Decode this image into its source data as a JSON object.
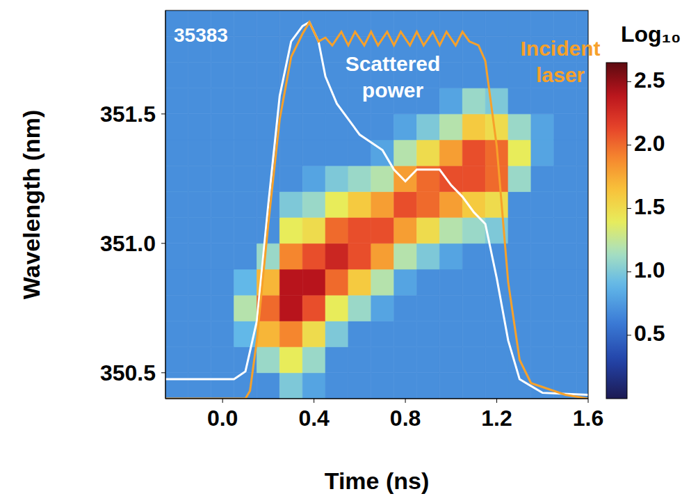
{
  "chart_data": {
    "type": "heatmap",
    "annotations": [
      "35383"
    ],
    "x_label": "Time (ns)",
    "y_label": "Wavelength (nm)",
    "xlim": [
      -0.25,
      1.6
    ],
    "xticks": [
      {
        "value": 0,
        "label": "0.0"
      },
      0.4,
      0.8,
      1.2,
      1.6
    ],
    "ylim": [
      350.4,
      351.9
    ],
    "yticks": [
      350.5,
      {
        "value": 351,
        "label": "351.0"
      },
      351.5
    ],
    "y2lim": [
      0,
      1
    ],
    "y2ticks": [],
    "x_bins": [
      -0.25,
      -0.15,
      -0.05,
      0.05,
      0.15,
      0.25,
      0.35,
      0.45,
      0.55,
      0.65,
      0.75,
      0.85,
      0.95,
      1.05,
      1.15,
      1.25,
      1.35,
      1.45,
      1.55,
      1.6
    ],
    "y_bins": [
      350.4,
      350.5,
      350.6,
      350.7,
      350.8,
      350.9,
      351.0,
      351.1,
      351.2,
      351.3,
      351.4,
      351.5,
      351.6,
      351.7,
      351.8,
      351.9
    ],
    "cells": [
      [
        0.7,
        0.7,
        0.7,
        0.7,
        0.7,
        1.0,
        0.8,
        0.7,
        0.7,
        0.7,
        0.7,
        0.7,
        0.7,
        0.7,
        0.7,
        0.7,
        0.7,
        0.7,
        0.7
      ],
      [
        0.7,
        0.7,
        0.7,
        0.7,
        1.1,
        1.4,
        1.1,
        0.7,
        0.7,
        0.7,
        0.7,
        0.7,
        0.7,
        0.7,
        0.7,
        0.7,
        0.7,
        0.7,
        0.7
      ],
      [
        0.7,
        0.7,
        0.7,
        0.9,
        1.7,
        1.9,
        1.5,
        1.0,
        0.7,
        0.7,
        0.7,
        0.7,
        0.7,
        0.7,
        0.7,
        0.7,
        0.7,
        0.7,
        0.7
      ],
      [
        0.7,
        0.7,
        0.7,
        1.2,
        2.0,
        2.4,
        2.1,
        1.4,
        1.1,
        0.8,
        0.7,
        0.7,
        0.7,
        0.7,
        0.7,
        0.7,
        0.7,
        0.7,
        0.7
      ],
      [
        0.7,
        0.7,
        0.7,
        0.9,
        1.7,
        2.4,
        2.4,
        2.0,
        1.6,
        1.2,
        0.8,
        0.7,
        0.7,
        0.7,
        0.7,
        0.7,
        0.7,
        0.7,
        0.7
      ],
      [
        0.7,
        0.7,
        0.7,
        0.7,
        1.1,
        1.9,
        2.1,
        2.3,
        2.1,
        1.8,
        1.2,
        1.0,
        0.8,
        0.7,
        0.7,
        0.7,
        0.7,
        0.7,
        0.7
      ],
      [
        0.7,
        0.7,
        0.7,
        0.7,
        0.7,
        1.4,
        1.5,
        2.0,
        2.1,
        2.1,
        1.8,
        1.5,
        1.2,
        1.1,
        1.0,
        0.7,
        0.7,
        0.7,
        0.7
      ],
      [
        0.7,
        0.7,
        0.7,
        0.7,
        0.7,
        1.0,
        1.1,
        1.4,
        1.6,
        1.8,
        2.1,
        2.0,
        1.8,
        1.6,
        1.5,
        0.7,
        0.7,
        0.7,
        0.7
      ],
      [
        0.7,
        0.7,
        0.7,
        0.7,
        0.7,
        0.7,
        0.8,
        1.0,
        1.1,
        1.2,
        1.8,
        2.0,
        2.1,
        2.1,
        2.0,
        1.1,
        0.7,
        0.7,
        0.7
      ],
      [
        0.7,
        0.7,
        0.7,
        0.7,
        0.7,
        0.7,
        0.7,
        0.7,
        0.7,
        0.8,
        1.2,
        1.5,
        1.8,
        2.1,
        2.0,
        1.4,
        0.8,
        0.7,
        0.7
      ],
      [
        0.7,
        0.7,
        0.7,
        0.7,
        0.7,
        0.7,
        0.7,
        0.7,
        0.7,
        0.7,
        0.8,
        1.0,
        1.2,
        1.6,
        1.5,
        1.1,
        0.8,
        0.7,
        0.7
      ],
      [
        0.7,
        0.7,
        0.7,
        0.7,
        0.7,
        0.7,
        0.7,
        0.7,
        0.7,
        0.7,
        0.7,
        0.7,
        0.8,
        1.1,
        1.0,
        0.7,
        0.7,
        0.7,
        0.7
      ],
      [
        0.7,
        0.7,
        0.7,
        0.7,
        0.7,
        0.7,
        0.7,
        0.7,
        0.7,
        0.7,
        0.7,
        0.7,
        0.7,
        0.7,
        0.7,
        0.7,
        0.7,
        0.7,
        0.7
      ],
      [
        0.7,
        0.7,
        0.7,
        0.7,
        0.7,
        0.7,
        0.7,
        0.7,
        0.7,
        0.7,
        0.7,
        0.7,
        0.7,
        0.7,
        0.7,
        0.7,
        0.7,
        0.7,
        0.7
      ],
      [
        0.7,
        0.7,
        0.7,
        0.7,
        0.7,
        0.7,
        0.7,
        0.7,
        0.7,
        0.7,
        0.7,
        0.7,
        0.7,
        0.7,
        0.7,
        0.7,
        0.7,
        0.7,
        0.7
      ]
    ],
    "colorbar": {
      "title": "Log₁₀",
      "range": [
        0,
        2.65
      ],
      "ticks": [
        0.5,
        {
          "value": 1,
          "label": "1.0"
        },
        1.5,
        {
          "value": 2,
          "label": "2.0"
        },
        2.5
      ]
    },
    "series": [
      {
        "name": "Scattered power",
        "color": "#ffffff",
        "axis": "y2",
        "type": "line",
        "x": [
          -0.25,
          0.05,
          0.1,
          0.15,
          0.2,
          0.25,
          0.3,
          0.35,
          0.38,
          0.42,
          0.45,
          0.5,
          0.6,
          0.7,
          0.75,
          0.8,
          0.85,
          0.9,
          0.95,
          1.0,
          1.05,
          1.1,
          1.15,
          1.2,
          1.25,
          1.3,
          1.4,
          1.6
        ],
        "values": [
          0.05,
          0.05,
          0.07,
          0.2,
          0.5,
          0.78,
          0.92,
          0.96,
          0.97,
          0.92,
          0.83,
          0.76,
          0.68,
          0.64,
          0.59,
          0.56,
          0.59,
          0.59,
          0.59,
          0.55,
          0.52,
          0.48,
          0.45,
          0.31,
          0.15,
          0.05,
          0.015,
          0.01
        ]
      },
      {
        "name": "Incident laser",
        "color": "#f7a12a",
        "axis": "y2",
        "type": "line",
        "x": [
          -0.25,
          0.1,
          0.12,
          0.15,
          0.2,
          0.25,
          0.3,
          0.35,
          0.38,
          0.42,
          0.45,
          0.48,
          0.52,
          0.55,
          0.58,
          0.62,
          0.65,
          0.68,
          0.72,
          0.75,
          0.78,
          0.82,
          0.85,
          0.88,
          0.92,
          0.95,
          0.98,
          1.02,
          1.05,
          1.08,
          1.12,
          1.15,
          1.2,
          1.25,
          1.3,
          1.35,
          1.4,
          1.5,
          1.6
        ],
        "values": [
          0,
          0,
          0.02,
          0.15,
          0.45,
          0.72,
          0.88,
          0.94,
          0.97,
          0.92,
          0.93,
          0.91,
          0.945,
          0.91,
          0.945,
          0.91,
          0.945,
          0.91,
          0.945,
          0.91,
          0.945,
          0.91,
          0.945,
          0.91,
          0.945,
          0.91,
          0.945,
          0.91,
          0.945,
          0.92,
          0.91,
          0.87,
          0.65,
          0.3,
          0.1,
          0.04,
          0.03,
          0.01,
          0
        ]
      }
    ]
  }
}
